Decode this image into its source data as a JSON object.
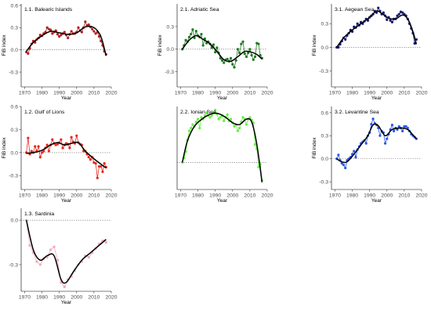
{
  "chart_data": [
    {
      "type": "line",
      "title": "1.1. Balearic Islands",
      "xlabel": "Year",
      "ylabel": "FiB index",
      "xlim": [
        1968,
        2020
      ],
      "ylim": [
        -0.5,
        0.62
      ],
      "xticks": [
        1970,
        1980,
        1990,
        2000,
        2010,
        2020
      ],
      "yticks": [
        0.6,
        0.3,
        0.0,
        -0.3
      ],
      "reference_line": 0.0,
      "color": "#b22222",
      "x": [
        1971,
        1972,
        1973,
        1974,
        1975,
        1976,
        1977,
        1978,
        1979,
        1980,
        1981,
        1982,
        1983,
        1984,
        1985,
        1986,
        1987,
        1988,
        1989,
        1990,
        1991,
        1992,
        1993,
        1994,
        1995,
        1996,
        1997,
        1998,
        1999,
        2000,
        2001,
        2002,
        2003,
        2004,
        2005,
        2006,
        2007,
        2008,
        2009,
        2010,
        2011,
        2012,
        2013,
        2014,
        2015,
        2016,
        2017
      ],
      "values": [
        -0.03,
        -0.05,
        0.02,
        0.08,
        0.12,
        0.1,
        0.14,
        0.16,
        0.2,
        0.19,
        0.22,
        0.24,
        0.3,
        0.28,
        0.27,
        0.22,
        0.24,
        0.26,
        0.21,
        0.18,
        0.2,
        0.22,
        0.24,
        0.2,
        0.16,
        0.21,
        0.25,
        0.22,
        0.22,
        0.24,
        0.3,
        0.26,
        0.24,
        0.3,
        0.38,
        0.33,
        0.34,
        0.31,
        0.28,
        0.25,
        0.22,
        0.24,
        0.18,
        0.12,
        0.06,
        -0.02,
        -0.06
      ],
      "smooth": [
        [
          1971,
          -0.02
        ],
        [
          1975,
          0.1
        ],
        [
          1980,
          0.19
        ],
        [
          1985,
          0.25
        ],
        [
          1990,
          0.23
        ],
        [
          1995,
          0.21
        ],
        [
          2000,
          0.23
        ],
        [
          2005,
          0.31
        ],
        [
          2010,
          0.3
        ],
        [
          2014,
          0.18
        ],
        [
          2017,
          -0.08
        ]
      ]
    },
    {
      "type": "line",
      "title": "1.2. Gulf of Lions",
      "xlabel": "Year",
      "ylabel": "FiB index",
      "xlim": [
        1968,
        2020
      ],
      "ylim": [
        -0.48,
        0.6
      ],
      "xticks": [
        1970,
        1980,
        1990,
        2000,
        2010,
        2020
      ],
      "yticks": [
        0.6,
        0.3,
        0.0,
        -0.3
      ],
      "reference_line": 0.0,
      "color": "#e8281e",
      "x": [
        1971,
        1972,
        1973,
        1974,
        1975,
        1976,
        1977,
        1978,
        1979,
        1980,
        1981,
        1982,
        1983,
        1984,
        1985,
        1986,
        1987,
        1988,
        1989,
        1990,
        1991,
        1992,
        1993,
        1994,
        1995,
        1996,
        1997,
        1998,
        1999,
        2000,
        2001,
        2002,
        2003,
        2004,
        2005,
        2006,
        2007,
        2008,
        2009,
        2010,
        2011,
        2012,
        2013,
        2014,
        2015,
        2016,
        2017
      ],
      "values": [
        0.0,
        0.19,
        -0.02,
        0.02,
        0.0,
        0.08,
        0.02,
        0.08,
        -0.06,
        0.0,
        0.02,
        0.06,
        0.1,
        0.02,
        0.1,
        0.17,
        0.12,
        0.1,
        0.11,
        0.13,
        0.17,
        0.06,
        0.1,
        0.12,
        0.11,
        0.06,
        0.2,
        0.14,
        0.12,
        0.22,
        0.13,
        0.11,
        0.1,
        0.02,
        0.02,
        -0.02,
        -0.06,
        -0.09,
        -0.06,
        -0.13,
        -0.14,
        -0.33,
        -0.18,
        -0.18,
        -0.25,
        -0.14,
        -0.19
      ],
      "smooth": [
        [
          1971,
          -0.01
        ],
        [
          1975,
          0.0
        ],
        [
          1980,
          0.03
        ],
        [
          1985,
          0.1
        ],
        [
          1989,
          0.13
        ],
        [
          1993,
          0.1
        ],
        [
          1997,
          0.12
        ],
        [
          2001,
          0.13
        ],
        [
          2005,
          0.02
        ],
        [
          2010,
          -0.08
        ],
        [
          2014,
          -0.15
        ],
        [
          2017,
          -0.2
        ]
      ]
    },
    {
      "type": "line",
      "title": "1.3. Sardinia",
      "xlabel": "Year",
      "ylabel": "",
      "xlim": [
        1968,
        2020
      ],
      "ylim": [
        -0.48,
        0.08
      ],
      "xticks": [
        1970,
        1980,
        1990,
        2000,
        2010,
        2020
      ],
      "yticks": [
        0.0,
        -0.3
      ],
      "reference_line": 0.0,
      "color": "#f2a9b8",
      "x": [
        1971,
        1973,
        1975,
        1977,
        1979,
        1981,
        1983,
        1985,
        1987,
        1989,
        1991,
        1993,
        1995,
        1997,
        1999,
        2001,
        2003,
        2005,
        2007,
        2009,
        2011,
        2013,
        2015,
        2017
      ],
      "values": [
        0.0,
        -0.17,
        -0.22,
        -0.28,
        -0.3,
        -0.26,
        -0.25,
        -0.2,
        -0.18,
        -0.27,
        -0.42,
        -0.45,
        -0.4,
        -0.38,
        -0.34,
        -0.3,
        -0.28,
        -0.24,
        -0.25,
        -0.22,
        -0.19,
        -0.16,
        -0.14,
        -0.15
      ],
      "smooth": [
        [
          1971,
          0.0
        ],
        [
          1975,
          -0.2
        ],
        [
          1979,
          -0.27
        ],
        [
          1983,
          -0.24
        ],
        [
          1987,
          -0.24
        ],
        [
          1991,
          -0.4
        ],
        [
          1994,
          -0.42
        ],
        [
          1998,
          -0.35
        ],
        [
          2003,
          -0.27
        ],
        [
          2008,
          -0.22
        ],
        [
          2013,
          -0.17
        ],
        [
          2017,
          -0.13
        ]
      ]
    },
    {
      "type": "line",
      "title": "2.1. Adriatic Sea",
      "xlabel": "Year",
      "ylabel": "FiB index",
      "xlim": [
        1968,
        2020
      ],
      "ylim": [
        -0.5,
        0.6
      ],
      "xticks": [
        1970,
        1980,
        1990,
        2000,
        2010,
        2020
      ],
      "yticks": [
        0.3,
        0.0,
        -0.3
      ],
      "reference_line": 0.0,
      "color": "#1f7a1f",
      "x": [
        1971,
        1972,
        1973,
        1974,
        1975,
        1976,
        1977,
        1978,
        1979,
        1980,
        1981,
        1982,
        1983,
        1984,
        1985,
        1986,
        1987,
        1988,
        1989,
        1990,
        1991,
        1992,
        1993,
        1994,
        1995,
        1996,
        1997,
        1998,
        1999,
        2000,
        2001,
        2002,
        2003,
        2004,
        2005,
        2006,
        2007,
        2008,
        2009,
        2010,
        2011,
        2012,
        2013,
        2014,
        2015,
        2016,
        2017
      ],
      "values": [
        0.0,
        0.05,
        0.12,
        0.1,
        0.16,
        0.2,
        0.26,
        0.15,
        0.24,
        0.18,
        0.16,
        0.2,
        0.05,
        0.14,
        0.08,
        0.1,
        0.07,
        0.02,
        0.06,
        -0.04,
        0.02,
        -0.05,
        -0.12,
        -0.15,
        -0.18,
        -0.14,
        -0.13,
        -0.16,
        -0.12,
        -0.2,
        -0.24,
        -0.15,
        0.0,
        -0.05,
        0.07,
        0.1,
        -0.06,
        -0.1,
        -0.05,
        0.0,
        -0.08,
        -0.14,
        -0.1,
        0.08,
        0.07,
        -0.08,
        -0.12
      ],
      "smooth": [
        [
          1971,
          0.0
        ],
        [
          1975,
          0.12
        ],
        [
          1979,
          0.18
        ],
        [
          1983,
          0.13
        ],
        [
          1987,
          0.07
        ],
        [
          1991,
          -0.03
        ],
        [
          1995,
          -0.14
        ],
        [
          1999,
          -0.16
        ],
        [
          2003,
          -0.1
        ],
        [
          2007,
          -0.03
        ],
        [
          2011,
          -0.04
        ],
        [
          2014,
          -0.07
        ],
        [
          2017,
          -0.13
        ]
      ]
    },
    {
      "type": "line",
      "title": "2.2. Ionian Sea",
      "xlabel": "Year",
      "ylabel": "",
      "xlim": [
        1968,
        2020
      ],
      "ylim": [
        -0.3,
        0.62
      ],
      "xticks": [
        1970,
        1980,
        1990,
        2000,
        2010,
        2020
      ],
      "yticks": [],
      "reference_line": 0.0,
      "color": "#66ee44",
      "x": [
        1971,
        1972,
        1973,
        1974,
        1975,
        1976,
        1977,
        1978,
        1979,
        1980,
        1981,
        1982,
        1983,
        1984,
        1985,
        1986,
        1987,
        1988,
        1989,
        1990,
        1991,
        1992,
        1993,
        1994,
        1995,
        1996,
        1997,
        1998,
        1999,
        2000,
        2001,
        2002,
        2003,
        2004,
        2005,
        2006,
        2007,
        2008,
        2009,
        2010,
        2011,
        2012,
        2013,
        2014,
        2015,
        2016,
        2017
      ],
      "values": [
        0.0,
        0.05,
        0.12,
        0.25,
        0.35,
        0.38,
        0.42,
        0.4,
        0.45,
        0.48,
        0.38,
        0.5,
        0.48,
        0.52,
        0.55,
        0.52,
        0.5,
        0.52,
        0.55,
        0.58,
        0.54,
        0.48,
        0.5,
        0.52,
        0.46,
        0.5,
        0.53,
        0.46,
        0.48,
        0.44,
        0.4,
        0.42,
        0.35,
        0.38,
        0.45,
        0.5,
        0.48,
        0.42,
        0.48,
        0.5,
        0.47,
        0.44,
        0.2,
        0.15,
        -0.05,
        -0.02,
        -0.2
      ],
      "smooth": [
        [
          1971,
          0.0
        ],
        [
          1974,
          0.24
        ],
        [
          1978,
          0.4
        ],
        [
          1983,
          0.49
        ],
        [
          1988,
          0.54
        ],
        [
          1992,
          0.54
        ],
        [
          1996,
          0.5
        ],
        [
          2000,
          0.44
        ],
        [
          2004,
          0.42
        ],
        [
          2008,
          0.48
        ],
        [
          2011,
          0.45
        ],
        [
          2014,
          0.2
        ],
        [
          2017,
          -0.22
        ]
      ]
    },
    {
      "type": "line",
      "title": "3.1. Aegean Sea",
      "xlabel": "Year",
      "ylabel": "FiB index",
      "xlim": [
        1968,
        2020
      ],
      "ylim": [
        -0.5,
        0.55
      ],
      "xticks": [
        1970,
        1980,
        1990,
        2000,
        2010,
        2020
      ],
      "yticks": [
        0.3,
        0.0,
        -0.3
      ],
      "reference_line": 0.0,
      "color": "#141870",
      "x": [
        1971,
        1972,
        1973,
        1974,
        1975,
        1976,
        1977,
        1978,
        1979,
        1980,
        1981,
        1982,
        1983,
        1984,
        1985,
        1986,
        1987,
        1988,
        1989,
        1990,
        1991,
        1992,
        1993,
        1994,
        1995,
        1996,
        1997,
        1998,
        1999,
        2000,
        2001,
        2002,
        2003,
        2004,
        2005,
        2006,
        2007,
        2008,
        2009,
        2010,
        2011,
        2012,
        2013,
        2014,
        2015,
        2016,
        2017
      ],
      "values": [
        0.0,
        0.0,
        0.04,
        0.08,
        0.12,
        0.1,
        0.15,
        0.18,
        0.22,
        0.2,
        0.26,
        0.25,
        0.3,
        0.28,
        0.32,
        0.3,
        0.33,
        0.36,
        0.34,
        0.38,
        0.4,
        0.42,
        0.46,
        0.44,
        0.5,
        0.46,
        0.42,
        0.44,
        0.4,
        0.35,
        0.38,
        0.34,
        0.32,
        0.36,
        0.36,
        0.4,
        0.42,
        0.45,
        0.44,
        0.42,
        0.4,
        0.36,
        0.3,
        0.24,
        0.18,
        0.05,
        0.1
      ],
      "smooth": [
        [
          1971,
          0.0
        ],
        [
          1975,
          0.12
        ],
        [
          1980,
          0.22
        ],
        [
          1985,
          0.3
        ],
        [
          1990,
          0.38
        ],
        [
          1994,
          0.46
        ],
        [
          1997,
          0.43
        ],
        [
          2001,
          0.37
        ],
        [
          2005,
          0.36
        ],
        [
          2009,
          0.41
        ],
        [
          2012,
          0.36
        ],
        [
          2015,
          0.2
        ],
        [
          2017,
          0.04
        ]
      ]
    },
    {
      "type": "line",
      "title": "3.2. Levantine Sea",
      "xlabel": "Year",
      "ylabel": "FiB index",
      "xlim": [
        1968,
        2020
      ],
      "ylim": [
        -0.4,
        0.68
      ],
      "xticks": [
        1970,
        1980,
        1990,
        2000,
        2010,
        2020
      ],
      "yticks": [
        0.6,
        0.3,
        0.0,
        -0.3
      ],
      "reference_line": 0.0,
      "color": "#2a57e8",
      "x": [
        1971,
        1972,
        1973,
        1974,
        1975,
        1976,
        1977,
        1978,
        1979,
        1980,
        1981,
        1982,
        1983,
        1984,
        1985,
        1986,
        1987,
        1988,
        1989,
        1990,
        1991,
        1992,
        1993,
        1994,
        1995,
        1996,
        1997,
        1998,
        1999,
        2000,
        2001,
        2002,
        2003,
        2004,
        2005,
        2006,
        2007,
        2008,
        2009,
        2010,
        2011,
        2012,
        2013,
        2014,
        2015,
        2016,
        2017
      ],
      "values": [
        0.0,
        0.05,
        -0.02,
        -0.06,
        -0.08,
        -0.12,
        -0.02,
        0.0,
        0.02,
        0.06,
        0.1,
        0.02,
        0.12,
        0.16,
        0.2,
        0.22,
        0.24,
        0.2,
        0.3,
        0.34,
        0.45,
        0.52,
        0.46,
        0.44,
        0.4,
        0.3,
        0.36,
        0.34,
        0.2,
        0.26,
        0.32,
        0.38,
        0.44,
        0.36,
        0.4,
        0.38,
        0.42,
        0.4,
        0.36,
        0.42,
        0.42,
        0.4,
        0.36,
        0.32,
        0.3,
        0.28,
        0.26
      ],
      "smooth": [
        [
          1971,
          0.0
        ],
        [
          1974,
          -0.04
        ],
        [
          1977,
          -0.04
        ],
        [
          1981,
          0.06
        ],
        [
          1985,
          0.18
        ],
        [
          1989,
          0.3
        ],
        [
          1992,
          0.44
        ],
        [
          1995,
          0.43
        ],
        [
          1999,
          0.3
        ],
        [
          2003,
          0.38
        ],
        [
          2008,
          0.4
        ],
        [
          2012,
          0.38
        ],
        [
          2015,
          0.31
        ],
        [
          2017,
          0.26
        ]
      ]
    }
  ]
}
